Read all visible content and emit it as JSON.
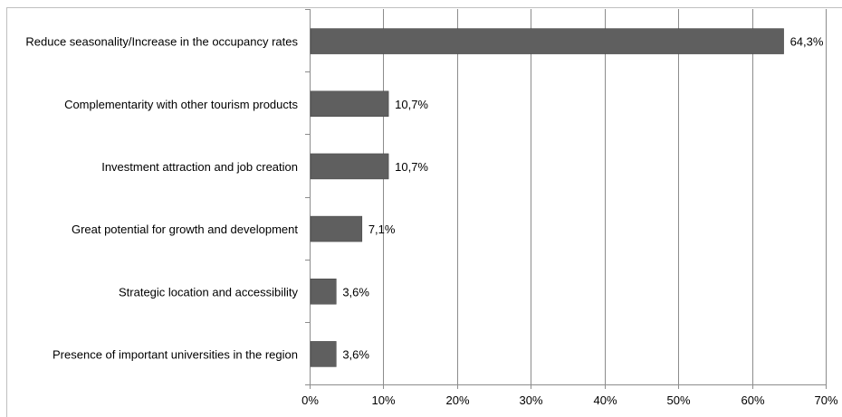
{
  "chart_data": {
    "type": "bar",
    "orientation": "horizontal",
    "categories": [
      "Reduce seasonality/Increase in the occupancy rates",
      "Complementarity with other tourism products",
      "Investment attraction and job creation",
      "Great potential for growth and development",
      "Strategic location and accessibility",
      "Presence of important universities in the region"
    ],
    "values": [
      64.3,
      10.7,
      10.7,
      7.1,
      3.6,
      3.6
    ],
    "data_labels": [
      "64,3%",
      "10,7%",
      "10,7%",
      "7,1%",
      "3,6%",
      "3,6%"
    ],
    "x_ticks": [
      "0%",
      "10%",
      "20%",
      "30%",
      "40%",
      "50%",
      "60%",
      "70%"
    ],
    "x_tick_values": [
      0,
      10,
      20,
      30,
      40,
      50,
      60,
      70
    ],
    "xlim": [
      0,
      70
    ],
    "title": "",
    "xlabel": "",
    "ylabel": "",
    "grid": "vertical",
    "legend": "none",
    "colors": {
      "bar": "#5f5f5f",
      "bar_edge": "#404040",
      "grid": "#8c8c8c",
      "axis": "#8c8c8c",
      "frame": "#bfbfbf"
    }
  }
}
